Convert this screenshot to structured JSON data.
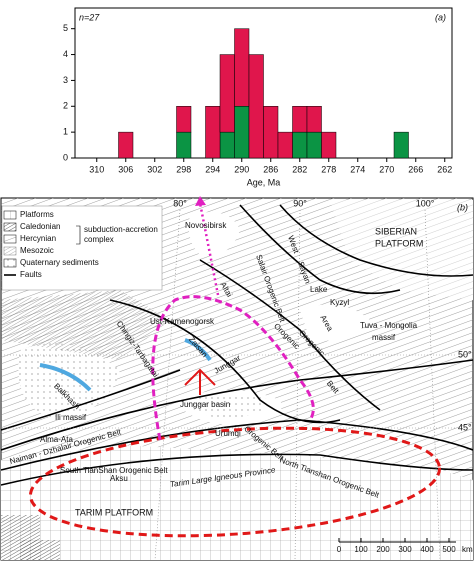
{
  "chart_data": {
    "type": "histogram",
    "title": "(a)",
    "annotation": "n=27",
    "xlabel": "Age, Ma",
    "bins": [
      307,
      305,
      303,
      301,
      299,
      297,
      295,
      293,
      291,
      289,
      287,
      285,
      283,
      281,
      279,
      277,
      275,
      273,
      271,
      269,
      267,
      265,
      263
    ],
    "series": [
      {
        "color": "#0b9444",
        "values": [
          0,
          0,
          0,
          0,
          1,
          0,
          0,
          1,
          2,
          0,
          0,
          0,
          1,
          1,
          0,
          0,
          0,
          0,
          0,
          1,
          0,
          0
        ]
      },
      {
        "color": "#e0164c",
        "values": [
          1,
          0,
          0,
          0,
          1,
          0,
          2,
          3,
          3,
          4,
          2,
          1,
          1,
          1,
          1,
          0,
          0,
          0,
          0,
          0,
          0,
          0
        ]
      }
    ],
    "xlim": [
      313,
      261
    ],
    "xticks": [
      310,
      306,
      302,
      298,
      294,
      290,
      286,
      282,
      278,
      274,
      270,
      266,
      262
    ],
    "ylim": [
      0,
      5.8
    ],
    "yticks": [
      0,
      1,
      2,
      3,
      4,
      5
    ]
  },
  "map": {
    "panel": "(b)",
    "longitudes": [
      "80°",
      "90°",
      "100°"
    ],
    "latitudes": [
      "50°",
      "45°"
    ],
    "legend": [
      "Platforms",
      "Caledonian",
      "Hercynian",
      "Mesozoic",
      "Quaternary sediments",
      "Faults"
    ],
    "legend_note": [
      "subduction-accretion",
      "complex"
    ],
    "labels": [
      "Novosibirsk",
      "Salair Orogenic Belt",
      "West",
      "Sayan",
      "Lake",
      "Area",
      "Orogenic",
      "Altai",
      "Ust-Kamenogorsk",
      "Chingiz-Tarbagatai",
      "Zaisan",
      "Junggar",
      "Kyzyl",
      "Tuva - Mongolia",
      "massif",
      "Orogenic",
      "SIBERIAN",
      "PLATFORM",
      "Balkhash",
      "Alma-Ata",
      "Ili massif",
      "Naiman - Dzhalair Orogenic Belt",
      "Junggar basin",
      "Urumqi",
      "North Tianshan Orogenic Belt",
      "South TianShan Orogenic Belt",
      "Aksu",
      "Tarim Large Igneous Province",
      "TARIM PLATFORM",
      "Orogenic Belt",
      "Belt"
    ],
    "scale": {
      "ticks": [
        0,
        100,
        200,
        300,
        400,
        500
      ],
      "unit": "km"
    }
  }
}
